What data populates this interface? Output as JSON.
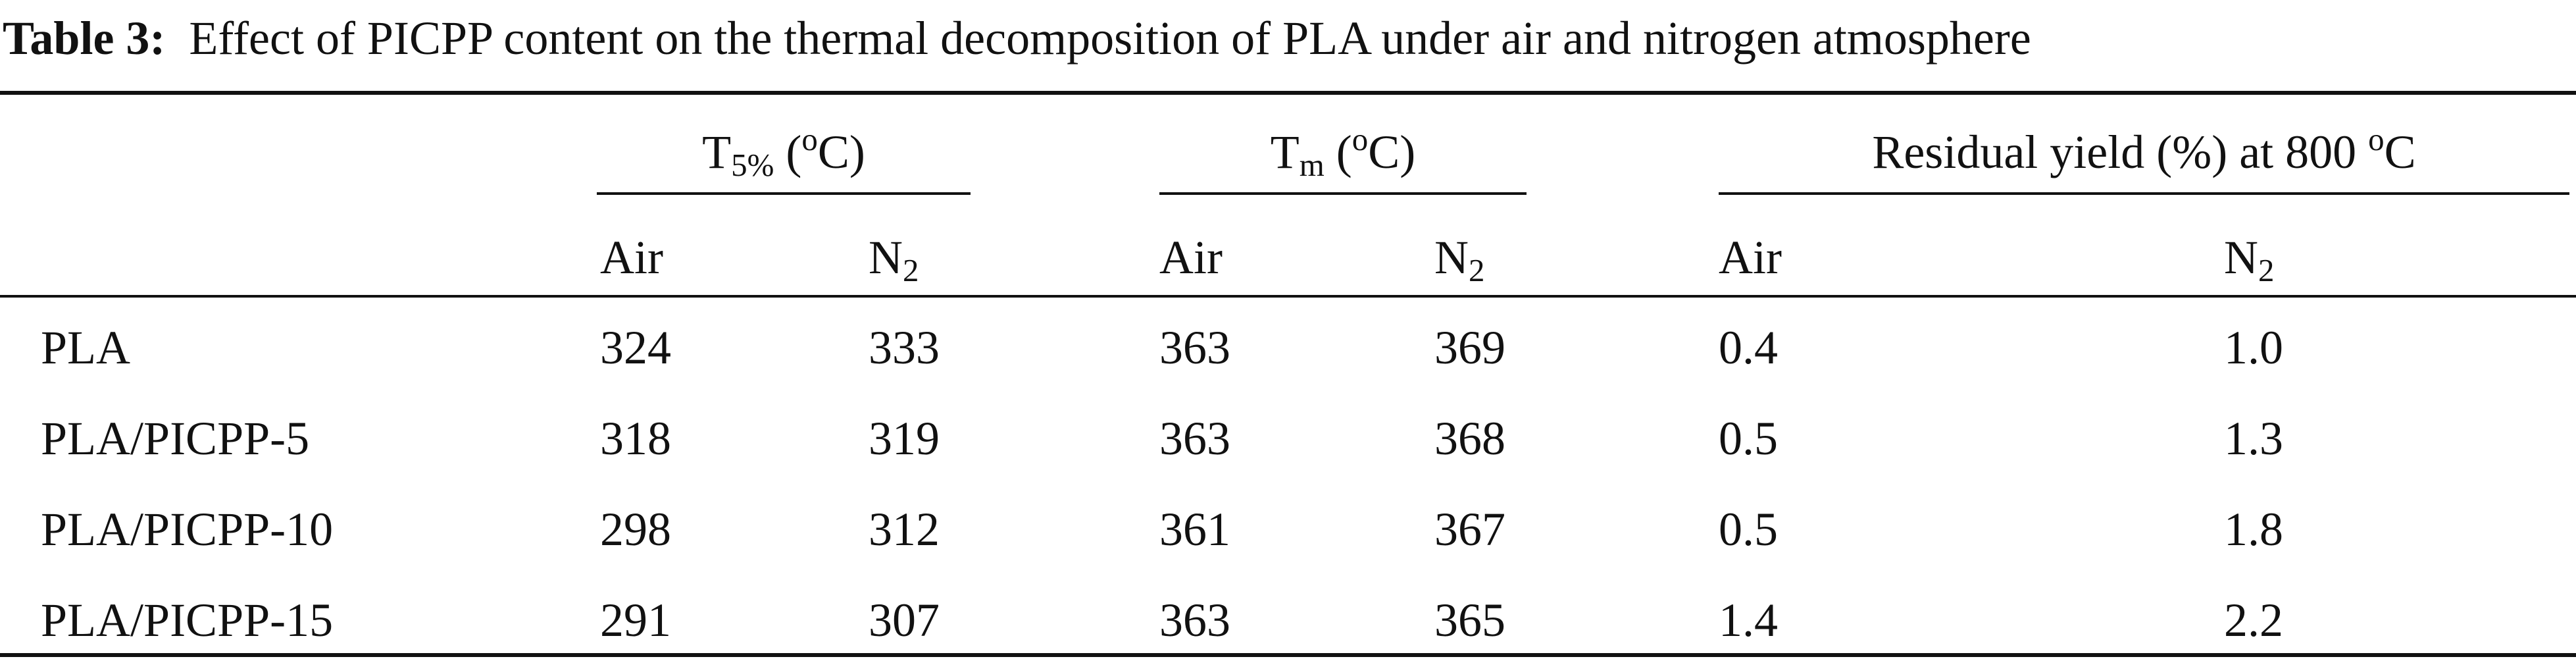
{
  "title": {
    "label": "Table 3:",
    "text": "Effect of PICPP content on the thermal decomposition of PLA under air and nitrogen atmosphere"
  },
  "table": {
    "groups": [
      [
        {
          "text": "T"
        },
        {
          "text": "5%",
          "style": "sub"
        },
        {
          "text": " ("
        },
        {
          "text": "o",
          "style": "sup"
        },
        {
          "text": "C)"
        }
      ],
      [
        {
          "text": "T"
        },
        {
          "text": "m",
          "style": "sub"
        },
        {
          "text": " ("
        },
        {
          "text": "o",
          "style": "sup"
        },
        {
          "text": "C)"
        }
      ],
      [
        {
          "text": "Residual yield (%) at 800 "
        },
        {
          "text": "o",
          "style": "sup"
        },
        {
          "text": "C"
        }
      ]
    ],
    "subheaders": [
      [
        {
          "text": "Air"
        }
      ],
      [
        {
          "text": "N"
        },
        {
          "text": "2",
          "style": "sub"
        }
      ],
      [
        {
          "text": "Air"
        }
      ],
      [
        {
          "text": "N"
        },
        {
          "text": "2",
          "style": "sub"
        }
      ],
      [
        {
          "text": "Air"
        }
      ],
      [
        {
          "text": "N"
        },
        {
          "text": "2",
          "style": "sub"
        }
      ]
    ],
    "rows": [
      [
        "PLA",
        "324",
        "333",
        "363",
        "369",
        "0.4",
        "1.0"
      ],
      [
        "PLA/PICPP-5",
        "318",
        "319",
        "363",
        "368",
        "0.5",
        "1.3"
      ],
      [
        "PLA/PICPP-10",
        "298",
        "312",
        "361",
        "367",
        "0.5",
        "1.8"
      ],
      [
        "PLA/PICPP-15",
        "291",
        "307",
        "363",
        "365",
        "1.4",
        "2.2"
      ]
    ]
  }
}
